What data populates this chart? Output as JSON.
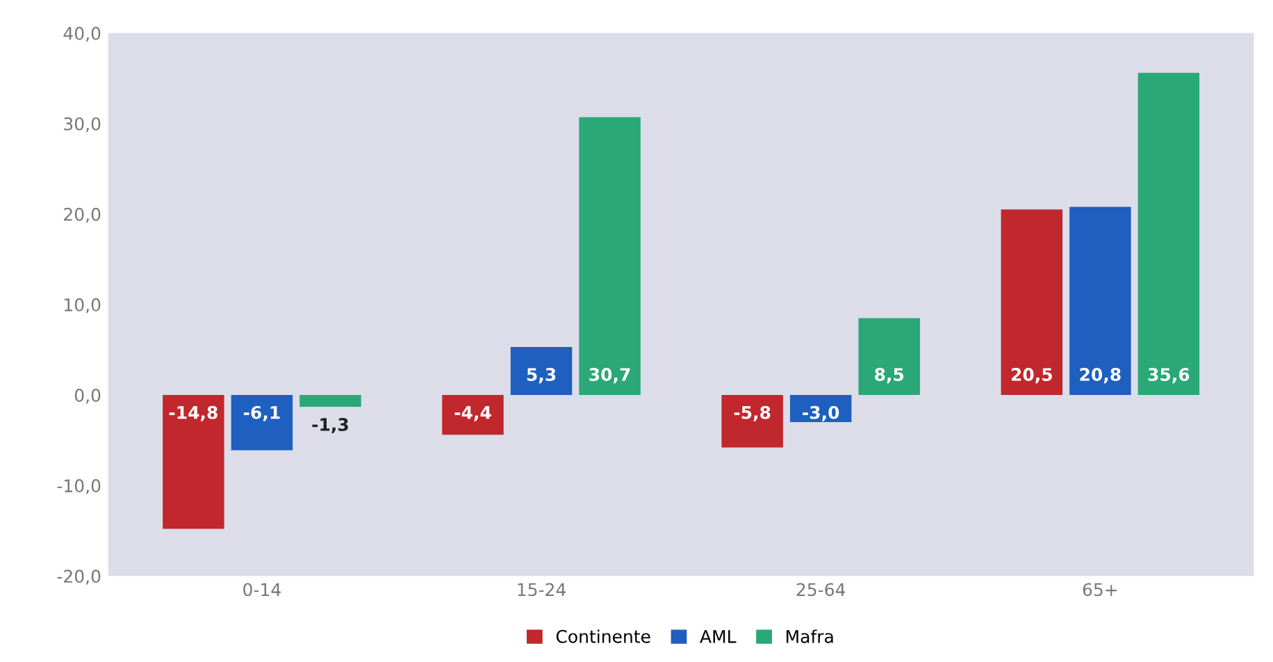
{
  "chart_data": {
    "type": "bar",
    "categories": [
      "0-14",
      "15-24",
      "25-64",
      "65+"
    ],
    "series": [
      {
        "name": "Continente",
        "color": "#c0282d",
        "values": [
          -14.8,
          -4.4,
          -5.8,
          20.5
        ],
        "value_labels": [
          "-14,8",
          "-4,4",
          "-5,8",
          "20,5"
        ]
      },
      {
        "name": "AML",
        "color": "#1f5fbf",
        "values": [
          -6.1,
          5.3,
          -3.0,
          20.8
        ],
        "value_labels": [
          "-6,1",
          "5,3",
          "-3,0",
          "20,8"
        ]
      },
      {
        "name": "Mafra",
        "color": "#2aa877",
        "values": [
          -1.3,
          30.7,
          8.5,
          35.6
        ],
        "value_labels": [
          "-1,3",
          "30,7",
          "8,5",
          "35,6"
        ]
      }
    ],
    "ylim": [
      -20,
      40
    ],
    "yticks": [
      {
        "value": -20,
        "label": "-20,0"
      },
      {
        "value": -10,
        "label": "-10,0"
      },
      {
        "value": 0,
        "label": "0,0"
      },
      {
        "value": 10,
        "label": "10,0"
      },
      {
        "value": 20,
        "label": "20,0"
      },
      {
        "value": 30,
        "label": "30,0"
      },
      {
        "value": 40,
        "label": "40,0"
      }
    ],
    "grid": false,
    "legend": "bottom"
  }
}
